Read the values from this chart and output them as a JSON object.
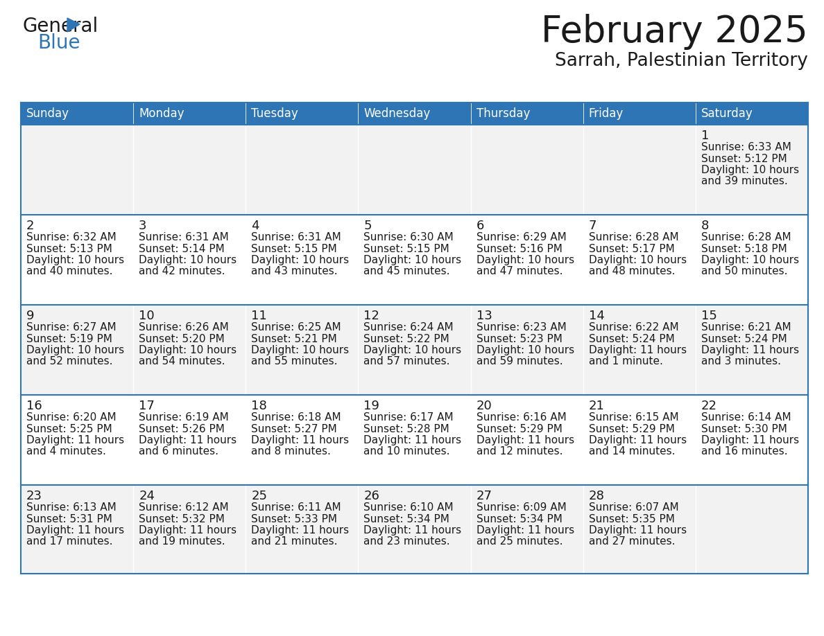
{
  "title": "February 2025",
  "subtitle": "Sarrah, Palestinian Territory",
  "header_bg": "#2E75B6",
  "header_text_color": "#FFFFFF",
  "cell_bg_odd": "#F2F2F2",
  "cell_bg_even": "#FFFFFF",
  "border_color": "#2E75B6",
  "text_color": "#1a1a1a",
  "day_headers": [
    "Sunday",
    "Monday",
    "Tuesday",
    "Wednesday",
    "Thursday",
    "Friday",
    "Saturday"
  ],
  "days": [
    {
      "day": 1,
      "col": 6,
      "row": 0,
      "sunrise": "6:33 AM",
      "sunset": "5:12 PM",
      "daylight": "10 hours",
      "daylight2": "and 39 minutes."
    },
    {
      "day": 2,
      "col": 0,
      "row": 1,
      "sunrise": "6:32 AM",
      "sunset": "5:13 PM",
      "daylight": "10 hours",
      "daylight2": "and 40 minutes."
    },
    {
      "day": 3,
      "col": 1,
      "row": 1,
      "sunrise": "6:31 AM",
      "sunset": "5:14 PM",
      "daylight": "10 hours",
      "daylight2": "and 42 minutes."
    },
    {
      "day": 4,
      "col": 2,
      "row": 1,
      "sunrise": "6:31 AM",
      "sunset": "5:15 PM",
      "daylight": "10 hours",
      "daylight2": "and 43 minutes."
    },
    {
      "day": 5,
      "col": 3,
      "row": 1,
      "sunrise": "6:30 AM",
      "sunset": "5:15 PM",
      "daylight": "10 hours",
      "daylight2": "and 45 minutes."
    },
    {
      "day": 6,
      "col": 4,
      "row": 1,
      "sunrise": "6:29 AM",
      "sunset": "5:16 PM",
      "daylight": "10 hours",
      "daylight2": "and 47 minutes."
    },
    {
      "day": 7,
      "col": 5,
      "row": 1,
      "sunrise": "6:28 AM",
      "sunset": "5:17 PM",
      "daylight": "10 hours",
      "daylight2": "and 48 minutes."
    },
    {
      "day": 8,
      "col": 6,
      "row": 1,
      "sunrise": "6:28 AM",
      "sunset": "5:18 PM",
      "daylight": "10 hours",
      "daylight2": "and 50 minutes."
    },
    {
      "day": 9,
      "col": 0,
      "row": 2,
      "sunrise": "6:27 AM",
      "sunset": "5:19 PM",
      "daylight": "10 hours",
      "daylight2": "and 52 minutes."
    },
    {
      "day": 10,
      "col": 1,
      "row": 2,
      "sunrise": "6:26 AM",
      "sunset": "5:20 PM",
      "daylight": "10 hours",
      "daylight2": "and 54 minutes."
    },
    {
      "day": 11,
      "col": 2,
      "row": 2,
      "sunrise": "6:25 AM",
      "sunset": "5:21 PM",
      "daylight": "10 hours",
      "daylight2": "and 55 minutes."
    },
    {
      "day": 12,
      "col": 3,
      "row": 2,
      "sunrise": "6:24 AM",
      "sunset": "5:22 PM",
      "daylight": "10 hours",
      "daylight2": "and 57 minutes."
    },
    {
      "day": 13,
      "col": 4,
      "row": 2,
      "sunrise": "6:23 AM",
      "sunset": "5:23 PM",
      "daylight": "10 hours",
      "daylight2": "and 59 minutes."
    },
    {
      "day": 14,
      "col": 5,
      "row": 2,
      "sunrise": "6:22 AM",
      "sunset": "5:24 PM",
      "daylight": "11 hours",
      "daylight2": "and 1 minute."
    },
    {
      "day": 15,
      "col": 6,
      "row": 2,
      "sunrise": "6:21 AM",
      "sunset": "5:24 PM",
      "daylight": "11 hours",
      "daylight2": "and 3 minutes."
    },
    {
      "day": 16,
      "col": 0,
      "row": 3,
      "sunrise": "6:20 AM",
      "sunset": "5:25 PM",
      "daylight": "11 hours",
      "daylight2": "and 4 minutes."
    },
    {
      "day": 17,
      "col": 1,
      "row": 3,
      "sunrise": "6:19 AM",
      "sunset": "5:26 PM",
      "daylight": "11 hours",
      "daylight2": "and 6 minutes."
    },
    {
      "day": 18,
      "col": 2,
      "row": 3,
      "sunrise": "6:18 AM",
      "sunset": "5:27 PM",
      "daylight": "11 hours",
      "daylight2": "and 8 minutes."
    },
    {
      "day": 19,
      "col": 3,
      "row": 3,
      "sunrise": "6:17 AM",
      "sunset": "5:28 PM",
      "daylight": "11 hours",
      "daylight2": "and 10 minutes."
    },
    {
      "day": 20,
      "col": 4,
      "row": 3,
      "sunrise": "6:16 AM",
      "sunset": "5:29 PM",
      "daylight": "11 hours",
      "daylight2": "and 12 minutes."
    },
    {
      "day": 21,
      "col": 5,
      "row": 3,
      "sunrise": "6:15 AM",
      "sunset": "5:29 PM",
      "daylight": "11 hours",
      "daylight2": "and 14 minutes."
    },
    {
      "day": 22,
      "col": 6,
      "row": 3,
      "sunrise": "6:14 AM",
      "sunset": "5:30 PM",
      "daylight": "11 hours",
      "daylight2": "and 16 minutes."
    },
    {
      "day": 23,
      "col": 0,
      "row": 4,
      "sunrise": "6:13 AM",
      "sunset": "5:31 PM",
      "daylight": "11 hours",
      "daylight2": "and 17 minutes."
    },
    {
      "day": 24,
      "col": 1,
      "row": 4,
      "sunrise": "6:12 AM",
      "sunset": "5:32 PM",
      "daylight": "11 hours",
      "daylight2": "and 19 minutes."
    },
    {
      "day": 25,
      "col": 2,
      "row": 4,
      "sunrise": "6:11 AM",
      "sunset": "5:33 PM",
      "daylight": "11 hours",
      "daylight2": "and 21 minutes."
    },
    {
      "day": 26,
      "col": 3,
      "row": 4,
      "sunrise": "6:10 AM",
      "sunset": "5:34 PM",
      "daylight": "11 hours",
      "daylight2": "and 23 minutes."
    },
    {
      "day": 27,
      "col": 4,
      "row": 4,
      "sunrise": "6:09 AM",
      "sunset": "5:34 PM",
      "daylight": "11 hours",
      "daylight2": "and 25 minutes."
    },
    {
      "day": 28,
      "col": 5,
      "row": 4,
      "sunrise": "6:07 AM",
      "sunset": "5:35 PM",
      "daylight": "11 hours",
      "daylight2": "and 27 minutes."
    }
  ],
  "num_rows": 5,
  "num_cols": 7
}
